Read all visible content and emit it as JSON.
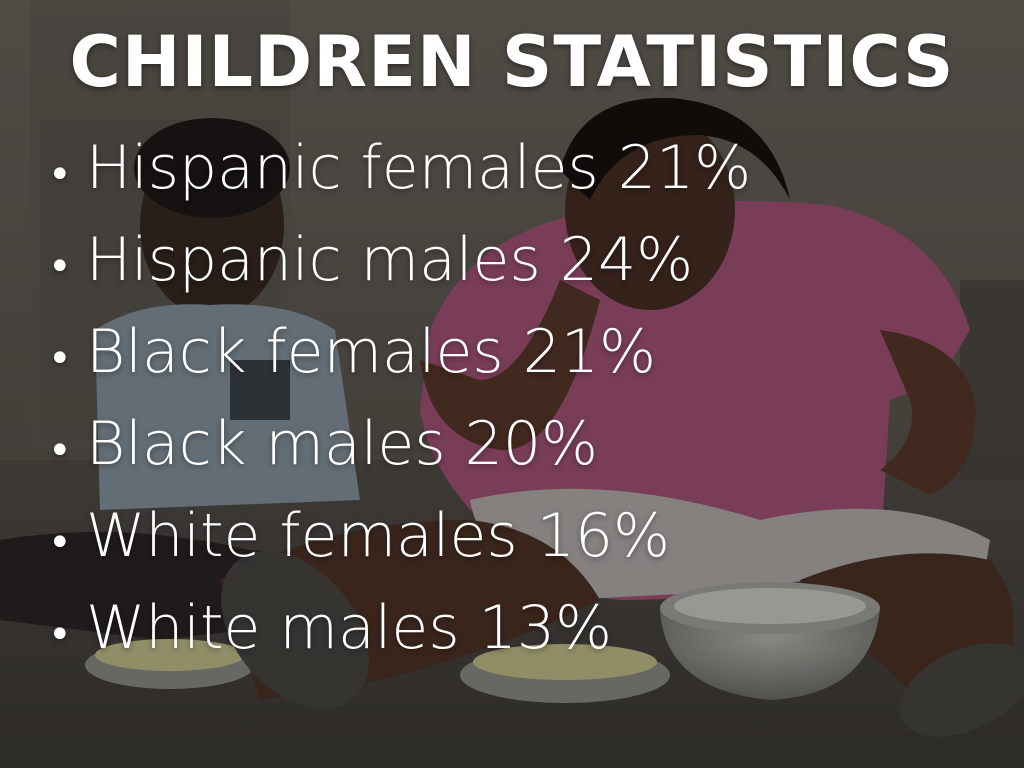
{
  "slide": {
    "title": "CHILDREN STATISTICS",
    "bullet_glyph": "•",
    "bullets": [
      "Hispanic females 21%",
      "Hispanic males 24%",
      "Black females 21%",
      "Black males 20%",
      "White females 16%",
      "White males 13%"
    ]
  },
  "colors": {
    "text": "#ffffff",
    "wall": "#6b655d",
    "floor": "#4a4743",
    "shirt_pink": "#a8557a",
    "shirt_plaid": "#8a97a3"
  }
}
